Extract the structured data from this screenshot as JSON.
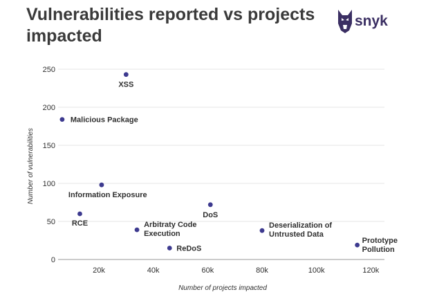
{
  "page": {
    "title": "Vulnerabilities reported vs projects impacted",
    "brand": "snyk"
  },
  "colors": {
    "point": "#3d3a8f",
    "grid": "#e6e6e6",
    "text": "#2f2f2f",
    "title": "#3a3a3a"
  },
  "chart_data": {
    "type": "scatter",
    "title": "Vulnerabilities reported vs projects impacted",
    "xlabel": "Number of projects impacted",
    "ylabel": "Number of vulnerabilities",
    "xlim": [
      5000,
      125000
    ],
    "ylim": [
      0,
      250
    ],
    "x_ticks": [
      20000,
      40000,
      60000,
      80000,
      100000,
      120000
    ],
    "x_tick_labels": [
      "20k",
      "40k",
      "60k",
      "80k",
      "100k",
      "120k"
    ],
    "y_ticks": [
      0,
      50,
      100,
      150,
      200,
      250
    ],
    "y_tick_labels": [
      "0",
      "50",
      "100",
      "150",
      "200",
      "250"
    ],
    "grid": true,
    "points": [
      {
        "label": "XSS",
        "x": 30000,
        "y": 243
      },
      {
        "label": "Malicious Package",
        "x": 6500,
        "y": 184
      },
      {
        "label": "Information Exposure",
        "x": 21000,
        "y": 98
      },
      {
        "label": "RCE",
        "x": 13000,
        "y": 60
      },
      {
        "label": "Arbitraty Code Execution",
        "x": 34000,
        "y": 39
      },
      {
        "label": "ReDoS",
        "x": 46000,
        "y": 15
      },
      {
        "label": "DoS",
        "x": 61000,
        "y": 72
      },
      {
        "label": "Deserialization of Untrusted Data",
        "x": 80000,
        "y": 38
      },
      {
        "label": "Prototype Pollution",
        "x": 115000,
        "y": 19
      }
    ]
  }
}
